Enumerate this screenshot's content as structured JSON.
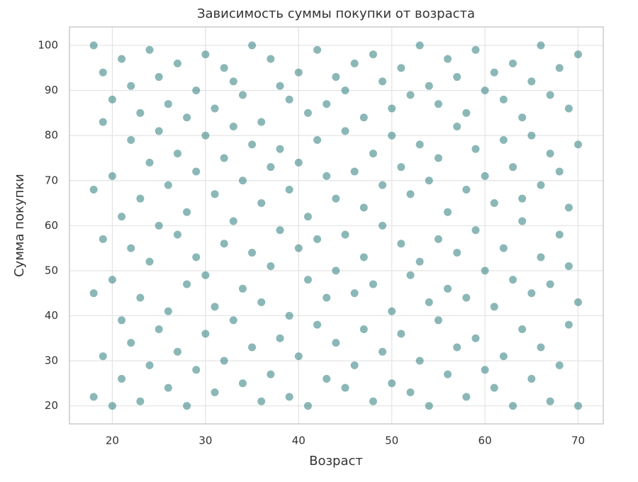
{
  "chart_data": {
    "type": "scatter",
    "title": "Зависимость суммы покупки от возраста",
    "x_label": "Возраст",
    "y_label": "Сумма покупки",
    "color": "#2b7c7c",
    "grid": true,
    "xlim": [
      15.4,
      72.7
    ],
    "ylim": [
      16,
      104.1
    ],
    "xticks": [
      20,
      30,
      40,
      50,
      60,
      70
    ],
    "yticks": [
      20,
      30,
      40,
      50,
      60,
      70,
      80,
      90,
      100
    ],
    "x": [
      18,
      18,
      18,
      18,
      19,
      19,
      19,
      19,
      20,
      20,
      20,
      20,
      21,
      21,
      21,
      21,
      22,
      22,
      22,
      22,
      23,
      23,
      23,
      23,
      24,
      24,
      24,
      24,
      25,
      25,
      25,
      25,
      26,
      26,
      26,
      26,
      27,
      27,
      27,
      27,
      28,
      28,
      28,
      28,
      29,
      29,
      29,
      29,
      30,
      30,
      30,
      30,
      31,
      31,
      31,
      31,
      32,
      32,
      32,
      32,
      33,
      33,
      33,
      33,
      34,
      34,
      34,
      34,
      35,
      35,
      35,
      35,
      36,
      36,
      36,
      36,
      37,
      37,
      37,
      37,
      38,
      38,
      38,
      38,
      39,
      39,
      39,
      39,
      40,
      40,
      40,
      40,
      41,
      41,
      41,
      41,
      42,
      42,
      42,
      42,
      43,
      43,
      43,
      43,
      44,
      44,
      44,
      44,
      45,
      45,
      45,
      45,
      46,
      46,
      46,
      46,
      47,
      47,
      47,
      47,
      48,
      48,
      48,
      48,
      49,
      49,
      49,
      49,
      50,
      50,
      50,
      50,
      51,
      51,
      51,
      51,
      52,
      52,
      52,
      52,
      53,
      53,
      53,
      53,
      54,
      54,
      54,
      54,
      55,
      55,
      55,
      55,
      56,
      56,
      56,
      56,
      57,
      57,
      57,
      57,
      58,
      58,
      58,
      58,
      59,
      59,
      59,
      59,
      60,
      60,
      60,
      60,
      61,
      61,
      61,
      61,
      62,
      62,
      62,
      62,
      63,
      63,
      63,
      63,
      64,
      64,
      64,
      64,
      65,
      65,
      65,
      65,
      66,
      66,
      66,
      66,
      67,
      67,
      67,
      67,
      68,
      68,
      68,
      68,
      69,
      69,
      69,
      69,
      70,
      70,
      70,
      70
    ],
    "y": [
      22,
      45,
      68,
      100,
      31,
      57,
      83,
      94,
      20,
      48,
      71,
      88,
      26,
      39,
      62,
      97,
      34,
      55,
      79,
      91,
      21,
      44,
      66,
      85,
      29,
      52,
      74,
      99,
      37,
      60,
      81,
      93,
      24,
      41,
      69,
      87,
      32,
      58,
      76,
      96,
      20,
      47,
      63,
      84,
      28,
      53,
      72,
      90,
      36,
      49,
      80,
      98,
      23,
      42,
      67,
      86,
      30,
      56,
      75,
      95,
      39,
      61,
      82,
      92,
      25,
      46,
      70,
      89,
      33,
      54,
      78,
      100,
      21,
      43,
      65,
      83,
      27,
      51,
      73,
      97,
      35,
      59,
      77,
      91,
      22,
      40,
      68,
      88,
      31,
      55,
      74,
      94,
      20,
      48,
      62,
      85,
      38,
      57,
      79,
      99,
      26,
      44,
      71,
      87,
      34,
      50,
      66,
      93,
      24,
      58,
      81,
      90,
      29,
      45,
      72,
      96,
      37,
      53,
      64,
      84,
      21,
      47,
      76,
      98,
      32,
      60,
      69,
      92,
      25,
      41,
      80,
      86,
      36,
      56,
      73,
      95,
      23,
      49,
      67,
      89,
      30,
      52,
      78,
      100,
      20,
      43,
      70,
      91,
      39,
      57,
      75,
      87,
      27,
      46,
      63,
      97,
      33,
      54,
      82,
      93,
      22,
      44,
      68,
      85,
      35,
      59,
      77,
      99,
      28,
      50,
      71,
      90,
      24,
      42,
      65,
      94,
      31,
      55,
      79,
      88,
      20,
      48,
      73,
      96,
      37,
      61,
      66,
      84,
      26,
      45,
      80,
      92,
      33,
      53,
      69,
      100,
      21,
      47,
      76,
      89,
      29,
      58,
      72,
      95,
      38,
      51,
      64,
      86,
      20,
      43,
      78,
      98
    ]
  }
}
